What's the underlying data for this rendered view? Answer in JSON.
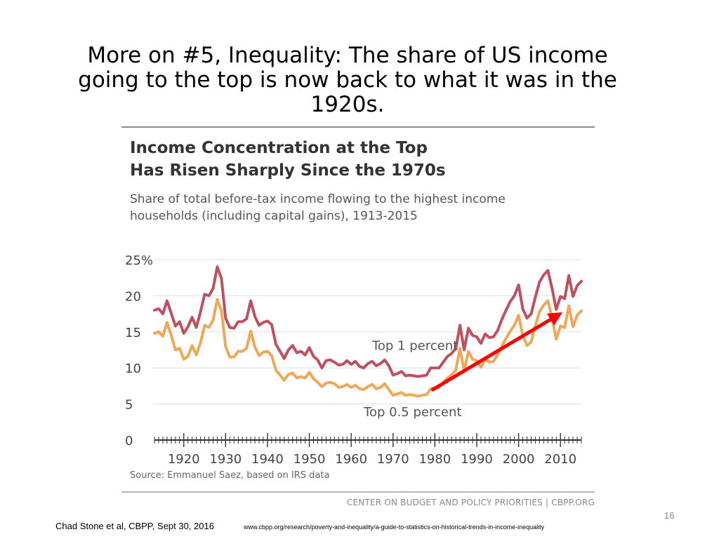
{
  "slide": {
    "title_lines": [
      "More on #5, Inequality: The share of US income",
      "going to the top is now back to what it was in the",
      "1920s."
    ],
    "page_number": "16",
    "citation": "Chad Stone et al, CBPP, Sept 30, 2016",
    "url": "www.cbpp.org/research/poverty-and-inequality/a-guide-to-statistics-on-historical-trends-in-income-inequality"
  },
  "chart_data": {
    "type": "line",
    "title_lines": [
      "Income Concentration at the Top",
      "Has Risen Sharply Since the 1970s"
    ],
    "subtitle_lines": [
      "Share of total before-tax income flowing to the highest income",
      "households (including capital gains), 1913-2015"
    ],
    "source": "Source: Emmanuel Saez, based on IRS data",
    "org": "CENTER ON BUDGET AND POLICY PRIORITIES | CBPP.ORG",
    "xlim": [
      1913,
      2015
    ],
    "ylim": [
      0,
      25
    ],
    "yticks": [
      0,
      5,
      10,
      15,
      20,
      25
    ],
    "ytick_labels": [
      "0",
      "5",
      "10",
      "15",
      "20",
      "25%"
    ],
    "xticks": [
      1920,
      1930,
      1940,
      1950,
      1960,
      1970,
      1980,
      1990,
      2000,
      2010
    ],
    "grid": true,
    "series": [
      {
        "name": "Top 1 percent",
        "color": "#c0505f",
        "x": [
          1913,
          1914,
          1915,
          1916,
          1917,
          1918,
          1919,
          1920,
          1921,
          1922,
          1923,
          1924,
          1925,
          1926,
          1927,
          1928,
          1929,
          1930,
          1931,
          1932,
          1933,
          1934,
          1935,
          1936,
          1937,
          1938,
          1939,
          1940,
          1941,
          1942,
          1943,
          1944,
          1945,
          1946,
          1947,
          1948,
          1949,
          1950,
          1951,
          1952,
          1953,
          1954,
          1955,
          1956,
          1957,
          1958,
          1959,
          1960,
          1961,
          1962,
          1963,
          1964,
          1965,
          1966,
          1967,
          1968,
          1969,
          1970,
          1971,
          1972,
          1973,
          1974,
          1975,
          1976,
          1977,
          1978,
          1979,
          1980,
          1981,
          1982,
          1983,
          1984,
          1985,
          1986,
          1987,
          1988,
          1989,
          1990,
          1991,
          1992,
          1993,
          1994,
          1995,
          1996,
          1997,
          1998,
          1999,
          2000,
          2001,
          2002,
          2003,
          2004,
          2005,
          2006,
          2007,
          2008,
          2009,
          2010,
          2011,
          2012,
          2013,
          2014,
          2015
        ],
        "values": [
          18.0,
          18.2,
          17.5,
          19.3,
          17.6,
          15.8,
          16.4,
          14.8,
          15.7,
          17.0,
          15.6,
          17.8,
          20.2,
          20.0,
          21.0,
          24.0,
          22.4,
          16.9,
          15.6,
          15.5,
          16.4,
          16.4,
          16.8,
          19.3,
          17.1,
          15.9,
          16.3,
          16.5,
          16.0,
          13.3,
          12.3,
          11.3,
          12.5,
          13.1,
          12.1,
          12.3,
          11.8,
          12.8,
          11.6,
          11.1,
          10.0,
          11.0,
          11.1,
          10.8,
          10.4,
          10.5,
          11.0,
          10.5,
          10.9,
          10.2,
          10.0,
          10.6,
          10.9,
          10.3,
          10.6,
          11.1,
          10.3,
          9.0,
          9.2,
          9.5,
          8.9,
          9.0,
          8.9,
          8.8,
          8.9,
          9.0,
          10.0,
          10.0,
          10.0,
          10.8,
          11.6,
          12.0,
          12.7,
          15.9,
          12.5,
          15.5,
          14.5,
          14.3,
          13.4,
          14.7,
          14.2,
          14.3,
          15.2,
          16.7,
          18.0,
          19.2,
          20.0,
          21.5,
          18.2,
          16.9,
          17.5,
          19.8,
          21.9,
          22.9,
          23.5,
          21.0,
          18.1,
          19.9,
          19.6,
          22.8,
          19.9,
          21.4,
          22.0
        ]
      },
      {
        "name": "Top 0.5 percent",
        "color": "#f0a858",
        "x": [
          1913,
          1914,
          1915,
          1916,
          1917,
          1918,
          1919,
          1920,
          1921,
          1922,
          1923,
          1924,
          1925,
          1926,
          1927,
          1928,
          1929,
          1930,
          1931,
          1932,
          1933,
          1934,
          1935,
          1936,
          1937,
          1938,
          1939,
          1940,
          1941,
          1942,
          1943,
          1944,
          1945,
          1946,
          1947,
          1948,
          1949,
          1950,
          1951,
          1952,
          1953,
          1954,
          1955,
          1956,
          1957,
          1958,
          1959,
          1960,
          1961,
          1962,
          1963,
          1964,
          1965,
          1966,
          1967,
          1968,
          1969,
          1970,
          1971,
          1972,
          1973,
          1974,
          1975,
          1976,
          1977,
          1978,
          1979,
          1980,
          1981,
          1982,
          1983,
          1984,
          1985,
          1986,
          1987,
          1988,
          1989,
          1990,
          1991,
          1992,
          1993,
          1994,
          1995,
          1996,
          1997,
          1998,
          1999,
          2000,
          2001,
          2002,
          2003,
          2004,
          2005,
          2006,
          2007,
          2008,
          2009,
          2010,
          2011,
          2012,
          2013,
          2014,
          2015
        ],
        "values": [
          14.8,
          15.0,
          14.4,
          16.3,
          14.5,
          12.5,
          12.7,
          11.2,
          11.6,
          13.1,
          11.8,
          13.5,
          15.9,
          15.6,
          16.6,
          19.5,
          17.9,
          13.0,
          11.5,
          11.5,
          12.3,
          12.3,
          12.7,
          15.1,
          12.9,
          11.7,
          12.2,
          12.3,
          11.7,
          9.7,
          9.0,
          8.3,
          9.1,
          9.3,
          8.6,
          8.8,
          8.6,
          9.4,
          8.5,
          8.0,
          7.4,
          7.9,
          8.0,
          7.8,
          7.3,
          7.4,
          7.7,
          7.3,
          7.6,
          7.1,
          7.0,
          7.4,
          7.7,
          7.1,
          7.3,
          7.8,
          7.0,
          6.2,
          6.4,
          6.6,
          6.2,
          6.3,
          6.2,
          6.1,
          6.2,
          6.3,
          7.1,
          7.2,
          7.3,
          8.0,
          8.6,
          9.0,
          9.7,
          12.7,
          9.5,
          12.3,
          11.2,
          11.0,
          10.1,
          11.2,
          10.8,
          10.9,
          11.8,
          13.0,
          14.1,
          15.1,
          15.9,
          17.3,
          14.5,
          13.1,
          13.6,
          15.8,
          17.8,
          18.7,
          19.3,
          16.9,
          14.0,
          15.8,
          15.6,
          18.6,
          15.7,
          17.3,
          17.9
        ]
      }
    ],
    "annotations": [
      {
        "text": "Top 1 percent"
      },
      {
        "text": "Top 0.5 percent"
      }
    ],
    "arrow": {
      "color": "#ff0000",
      "x_from": 1979.5,
      "y_from": 7.0,
      "x_to": 2010.5,
      "y_to": 17.7
    },
    "gridline_color": "#dddddd",
    "axis_color": "#333333"
  }
}
